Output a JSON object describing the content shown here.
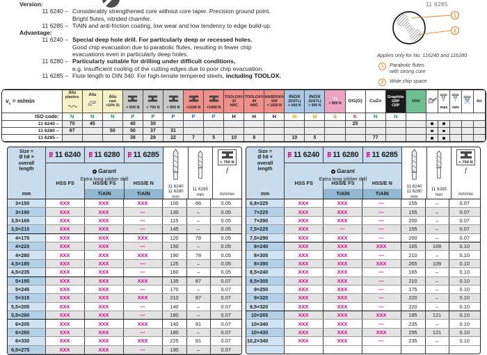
{
  "page_number": "11 6285",
  "intro": {
    "sections": [
      {
        "title": "Version:",
        "items": [
          {
            "code": "11 6240 –",
            "lines": [
              {
                "text": "Considerably strengthened core without core taper. Precision ground point.",
                "bold": false
              },
              {
                "text": "Bright flutes, nitrided chamfer.",
                "bold": false
              }
            ]
          },
          {
            "code": "11 6285 –",
            "lines": [
              {
                "text": "TiAlN and anti-friction coating, low wear and low tendency to edge build-up.",
                "bold": false
              }
            ]
          }
        ]
      },
      {
        "title": "Advantage:",
        "items": [
          {
            "code": "11 6240 –",
            "lines": [
              {
                "text": "Special deep hole drill. For particularly deep or recessed holes.",
                "bold": true
              },
              {
                "text": "Good chip evacuation due to parabolic flutes, resulting in fewer chip",
                "bold": false
              },
              {
                "text": "evacuations even in particularly deep holes.",
                "bold": false
              }
            ]
          },
          {
            "code": "11 6280 –",
            "lines": [
              {
                "text": "Particularly suitable for drilling under difficult conditions,",
                "bold": true
              },
              {
                "text": "e.g. insufficient cooling of the cutting edges due to poor chip evacuation.",
                "bold": false
              }
            ]
          },
          {
            "code": "11 6285 –",
            "lines": [
              {
                "text": "Flute length to DIN 340. For high-tensile tempered steels, ",
                "bold": false,
                "bold_tail": "including TOOLOX."
              }
            ]
          }
        ]
      }
    ]
  },
  "diagram": {
    "applies_note": "Applies only for No. 116240 and 116280",
    "callouts": [
      {
        "num": "1",
        "lines": [
          "Parabolic flutes",
          "with strong core"
        ]
      },
      {
        "num": "2",
        "lines": [
          "Wide chip space"
        ]
      }
    ],
    "accent_color": "#e98b3a"
  },
  "cutting_table": {
    "vc_main": "v",
    "vc_sub": "c",
    "vc_rest": " = m/min",
    "iso_label": "ISO code:",
    "columns": [
      {
        "cls": "c-alu",
        "icon": "wave",
        "lines": [
          "Alu",
          "plastics"
        ]
      },
      {
        "cls": "c-alu",
        "icon": "profile",
        "lines": [
          "Alu"
        ]
      },
      {
        "cls": "c-alu",
        "icon": "",
        "lines": [
          "Alu",
          "cast",
          ">10% Si"
        ]
      },
      {
        "cls": "c-steel",
        "icon": "anvil",
        "lines": [
          "< 500 N"
        ]
      },
      {
        "cls": "c-steel",
        "icon": "anvil",
        "lines": [
          "< 750 N"
        ]
      },
      {
        "cls": "c-steel",
        "icon": "anvil",
        "lines": [
          "< 900 N"
        ]
      },
      {
        "cls": "c-hard",
        "icon": "anvil",
        "lines": [
          "<1100 N"
        ]
      },
      {
        "cls": "c-hard",
        "icon": "anvil",
        "lines": [
          "<1400 N"
        ]
      },
      {
        "cls": "c-hard",
        "icon": "",
        "lines": [
          "TOOLOX®",
          "33",
          "HRC"
        ]
      },
      {
        "cls": "c-hard",
        "icon": "",
        "lines": [
          "TOOLOX®",
          "44",
          "HRC"
        ]
      },
      {
        "cls": "c-hard",
        "icon": "",
        "lines": [
          "HARDOX®",
          "500",
          "< 1600 N"
        ]
      },
      {
        "cls": "c-inox",
        "icon": "",
        "lines": [
          "INOX",
          "(S/STL)",
          "< 900 N"
        ]
      },
      {
        "cls": "c-inox",
        "icon": "",
        "lines": [
          "INOX",
          "(S/STL)",
          "> 900 N"
        ]
      },
      {
        "cls": "c-ti",
        "icon": "",
        "lines": [
          "Ti",
          "> 850 N"
        ]
      },
      {
        "cls": "c-plain",
        "icon": "",
        "lines": [
          "GG(G)"
        ]
      },
      {
        "cls": "c-plain",
        "icon": "",
        "lines": [
          "CuZn"
        ]
      },
      {
        "cls": "c-graph",
        "icon": "",
        "lines": [
          "Graphite",
          "GRP",
          "CRP"
        ]
      },
      {
        "cls": "c-uni",
        "icon": "",
        "lines": [
          "Uni"
        ]
      }
    ],
    "coolant_columns": [
      {
        "icon": "oilcan",
        "label": ""
      },
      {
        "icon": "tap",
        "label": "max"
      },
      {
        "icon": "tapmin",
        "label": "min"
      },
      {
        "icon": "tapx",
        "label": ""
      },
      {
        "icon": "",
        "label": "Air"
      }
    ],
    "iso_codes": [
      {
        "t": "N",
        "c": "#00a14b"
      },
      {
        "t": "N",
        "c": "#00a14b"
      },
      {
        "t": "N",
        "c": "#00a14b"
      },
      {
        "t": "P",
        "c": "#2272b9"
      },
      {
        "t": "P",
        "c": "#2272b9"
      },
      {
        "t": "P",
        "c": "#2272b9"
      },
      {
        "t": "P",
        "c": "#2272b9"
      },
      {
        "t": "P",
        "c": "#2272b9"
      },
      {
        "t": "H",
        "c": "#1a1a1a"
      },
      {
        "t": "H",
        "c": "#1a1a1a"
      },
      {
        "t": "H",
        "c": "#1a1a1a"
      },
      {
        "t": "M",
        "c": "#f4a71d"
      },
      {
        "t": "M",
        "c": "#f4a71d"
      },
      {
        "t": "S",
        "c": "#ef7c1a"
      },
      {
        "t": "K",
        "c": "#e5332a"
      },
      {
        "t": "N",
        "c": "#00a14b"
      },
      {
        "t": "N",
        "c": "#00a14b"
      },
      {
        "t": "",
        "c": "#1a1a1a"
      }
    ],
    "rows": [
      {
        "label": "11 6240 –",
        "v": [
          "70",
          "45",
          "",
          "40",
          "30",
          "",
          "",
          "",
          "",
          "",
          "",
          "",
          "",
          "",
          "25",
          "",
          "",
          ""
        ],
        "dots": [
          1,
          1,
          0,
          0,
          0
        ]
      },
      {
        "label": "11 6280 –",
        "v": [
          "87",
          "",
          "50",
          "50",
          "37",
          "31",
          "",
          "",
          "",
          "",
          "",
          "",
          "",
          "",
          "",
          "",
          "",
          ""
        ],
        "dots": [
          1,
          1,
          0,
          0,
          0
        ]
      },
      {
        "label": "11 6285 –",
        "v": [
          "",
          "",
          "",
          "38",
          "28",
          "22",
          "7",
          "5",
          "10",
          "8",
          "",
          "10",
          "5",
          "",
          "",
          "77",
          "",
          ""
        ],
        "dots": [
          1,
          1,
          0,
          0,
          0
        ]
      }
    ]
  },
  "product_header": {
    "size_lines": [
      "Size =",
      "Ø h8 ×",
      "overall",
      "length"
    ],
    "unit_mm": "mm",
    "catalog_numbers": [
      "11 6240",
      "11 6280",
      "11 6285"
    ],
    "brand": "Garant",
    "subtitle": "Extra long jobber drill",
    "variants": [
      "HSS FS",
      "HSS/E FS",
      "HSS/E  N"
    ],
    "coating_label": "TiAlN",
    "flute1_lines": [
      "11 6240",
      "11 6280"
    ],
    "flute2_lines": [
      "11 6285"
    ],
    "feed": {
      "load": "< 750 N",
      "symbol": "f",
      "unit": "mm/rev"
    },
    "accent_magenta": "#e5007d"
  },
  "product_tables": [
    {
      "rows": [
        {
          "d": "3",
          "l": "150",
          "a": "XXX",
          "b": "XXX",
          "c": "XXX",
          "l1": "100",
          "l2": "66",
          "f": "0.05"
        },
        {
          "d": "3",
          "l": "190",
          "a": "XXX",
          "b": "XXX",
          "c": "—",
          "l1": "130",
          "l2": "–",
          "f": "0.05"
        },
        {
          "d": "3,5",
          "l": "165",
          "a": "XXX",
          "b": "XXX",
          "c": "—",
          "l1": "115",
          "l2": "–",
          "f": "0.05"
        },
        {
          "d": "3,5",
          "l": "210",
          "a": "XXX",
          "b": "XXX",
          "c": "—",
          "l1": "145",
          "l2": "–",
          "f": "0.05",
          "ge": true
        },
        {
          "d": "4",
          "l": "175",
          "a": "XXX",
          "b": "XXX",
          "c": "XXX",
          "l1": "120",
          "l2": "78",
          "f": "0.05"
        },
        {
          "d": "4",
          "l": "220",
          "a": "XXX",
          "b": "XXX",
          "c": "—",
          "l1": "150",
          "l2": "–",
          "f": "0.05"
        },
        {
          "d": "4",
          "l": "280",
          "a": "XXX",
          "b": "XXX",
          "c": "XXX",
          "l1": "190",
          "l2": "78",
          "f": "0.05"
        },
        {
          "d": "4,5",
          "l": "185",
          "a": "XXX",
          "b": "XXX",
          "c": "—",
          "l1": "125",
          "l2": "–",
          "f": "0.05"
        },
        {
          "d": "4,5",
          "l": "235",
          "a": "XXX",
          "b": "XXX",
          "c": "—",
          "l1": "160",
          "l2": "–",
          "f": "0.05",
          "ge": true
        },
        {
          "d": "5",
          "l": "195",
          "a": "XXX",
          "b": "XXX",
          "c": "XXX",
          "l1": "135",
          "l2": "87",
          "f": "0.07"
        },
        {
          "d": "5",
          "l": "245",
          "a": "XXX",
          "b": "XXX",
          "c": "—",
          "l1": "170",
          "l2": "–",
          "f": "0.07"
        },
        {
          "d": "5",
          "l": "315",
          "a": "XXX",
          "b": "XXX",
          "c": "XXX",
          "l1": "210",
          "l2": "87",
          "f": "0.07"
        },
        {
          "d": "5,5",
          "l": "205",
          "a": "XXX",
          "b": "XXX",
          "c": "—",
          "l1": "140",
          "l2": "–",
          "f": "0.07"
        },
        {
          "d": "5,5",
          "l": "260",
          "a": "XXX",
          "b": "XXX",
          "c": "—",
          "l1": "180",
          "l2": "–",
          "f": "0.07",
          "ge": true
        },
        {
          "d": "6",
          "l": "205",
          "a": "XXX",
          "b": "XXX",
          "c": "XXX",
          "l1": "140",
          "l2": "91",
          "f": "0.07"
        },
        {
          "d": "6",
          "l": "260",
          "a": "XXX",
          "b": "XXX",
          "c": "—",
          "l1": "180",
          "l2": "–",
          "f": "0.07"
        },
        {
          "d": "6",
          "l": "330",
          "a": "XXX",
          "b": "XXX",
          "c": "XXX",
          "l1": "225",
          "l2": "91",
          "f": "0.07"
        },
        {
          "d": "6,5",
          "l": "275",
          "a": "XXX",
          "b": "XXX",
          "c": "—",
          "l1": "190",
          "l2": "–",
          "f": "0.07"
        }
      ]
    },
    {
      "rows": [
        {
          "d": "6,8",
          "l": "225",
          "a": "XXX",
          "b": "XXX",
          "c": "—",
          "l1": "155",
          "l2": "–",
          "f": "0.07"
        },
        {
          "d": "7",
          "l": "225",
          "a": "XXX",
          "b": "XXX",
          "c": "—",
          "l1": "155",
          "l2": "–",
          "f": "0.07"
        },
        {
          "d": "7",
          "l": "290",
          "a": "XXX",
          "b": "XXX",
          "c": "—",
          "l1": "200",
          "l2": "–",
          "f": "0.07"
        },
        {
          "d": "7,5",
          "l": "225",
          "a": "XXX",
          "b": "—",
          "c": "—",
          "l1": "155",
          "l2": "–",
          "f": "0.07"
        },
        {
          "d": "7,5",
          "l": "290",
          "a": "XXX",
          "b": "XXX",
          "c": "—",
          "l1": "200",
          "l2": "–",
          "f": "0.07",
          "ge": true
        },
        {
          "d": "8",
          "l": "240",
          "a": "XXX",
          "b": "XXX",
          "c": "XXX",
          "l1": "165",
          "l2": "109",
          "f": "0.10"
        },
        {
          "d": "8",
          "l": "305",
          "a": "XXX",
          "b": "XXX",
          "c": "—",
          "l1": "210",
          "l2": "–",
          "f": "0.10"
        },
        {
          "d": "8",
          "l": "390",
          "a": "XXX",
          "b": "XXX",
          "c": "XXX",
          "l1": "265",
          "l2": "109",
          "f": "0.10"
        },
        {
          "d": "8,5",
          "l": "240",
          "a": "XXX",
          "b": "XXX",
          "c": "—",
          "l1": "165",
          "l2": "–",
          "f": "0.10"
        },
        {
          "d": "8,5",
          "l": "305",
          "a": "XXX",
          "b": "XXX",
          "c": "—",
          "l1": "210",
          "l2": "–",
          "f": "0.10"
        },
        {
          "d": "9",
          "l": "250",
          "a": "XXX",
          "b": "XXX",
          "c": "—",
          "l1": "175",
          "l2": "–",
          "f": "0.10"
        },
        {
          "d": "9",
          "l": "320",
          "a": "XXX",
          "b": "XXX",
          "c": "—",
          "l1": "220",
          "l2": "–",
          "f": "0.10"
        },
        {
          "d": "9,5",
          "l": "320",
          "a": "XXX",
          "b": "XXX",
          "c": "—",
          "l1": "220",
          "l2": "–",
          "f": "0.10",
          "ge": true
        },
        {
          "d": "10",
          "l": "265",
          "a": "XXX",
          "b": "XXX",
          "c": "XXX",
          "l1": "185",
          "l2": "121",
          "f": "0.10"
        },
        {
          "d": "10",
          "l": "340",
          "a": "XXX",
          "b": "XXX",
          "c": "—",
          "l1": "235",
          "l2": "–",
          "f": "0.10"
        },
        {
          "d": "10",
          "l": "430",
          "a": "XXX",
          "b": "XXX",
          "c": "XXX",
          "l1": "295",
          "l2": "121",
          "f": "0.10"
        },
        {
          "d": "10,2",
          "l": "340",
          "a": "XXX",
          "b": "XXX",
          "c": "—",
          "l1": "235",
          "l2": "–",
          "f": "0.10"
        },
        {
          "filler": true
        }
      ]
    }
  ]
}
